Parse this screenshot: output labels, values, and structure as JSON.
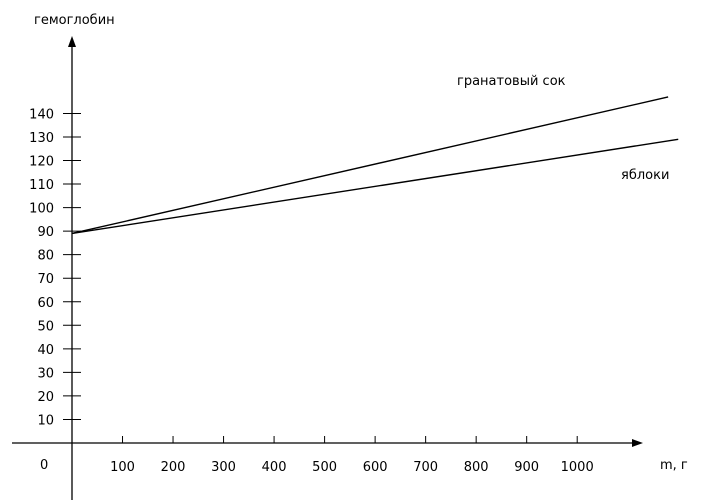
{
  "chart_data": {
    "type": "line",
    "title": "",
    "ylabel": "гемоглобин",
    "xlabel": "m, г",
    "origin_label": "0",
    "x_ticks": [
      100,
      200,
      300,
      400,
      500,
      600,
      700,
      800,
      900,
      1000
    ],
    "y_ticks": [
      10,
      20,
      30,
      40,
      50,
      60,
      70,
      80,
      90,
      100,
      110,
      120,
      130,
      140
    ],
    "xlim": [
      0,
      1120
    ],
    "ylim": [
      0,
      175
    ],
    "grid": false,
    "series": [
      {
        "name": "гранатовый сок",
        "x": [
          0,
          1180
        ],
        "y": [
          89,
          147
        ]
      },
      {
        "name": "яблоки",
        "x": [
          0,
          1200
        ],
        "y": [
          89,
          129
        ]
      }
    ],
    "colors": {
      "axis": "#000000",
      "series": "#000000"
    }
  }
}
